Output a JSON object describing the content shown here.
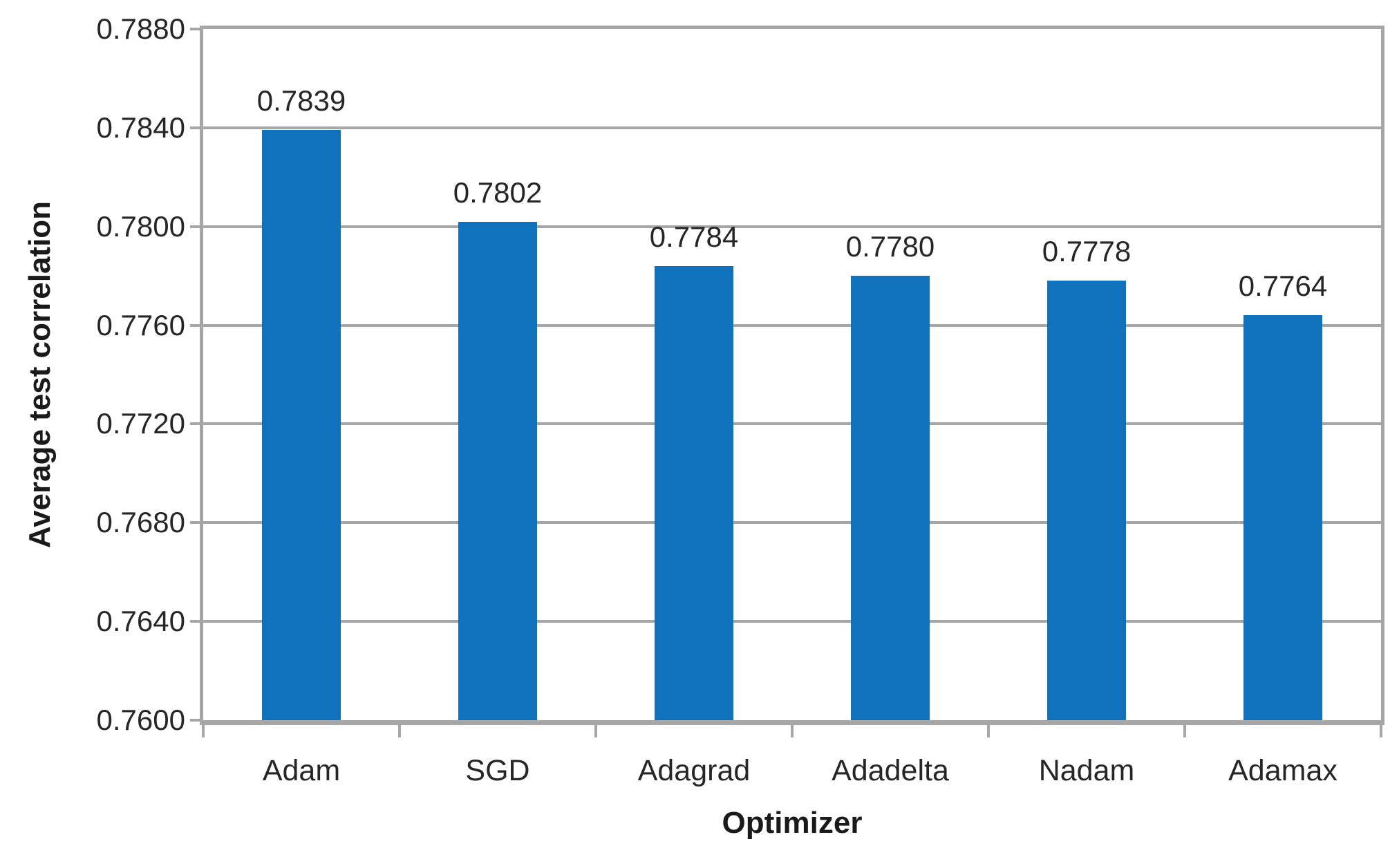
{
  "chart_data": {
    "type": "bar",
    "title": "",
    "categories": [
      "Adam",
      "SGD",
      "Adagrad",
      "Adadelta",
      "Nadam",
      "Adamax"
    ],
    "values": [
      0.7839,
      0.7802,
      0.7784,
      0.778,
      0.7778,
      0.7764
    ],
    "data_labels": [
      "0.7839",
      "0.7802",
      "0.7784",
      "0.7780",
      "0.7778",
      "0.7764"
    ],
    "xlabel": "Optimizer",
    "ylabel": "Average test correlation",
    "ylim": [
      0.76,
      0.788
    ],
    "ytick_step": 0.004,
    "ytick_labels_top_to_bottom": [
      "0.7880",
      "0.7840",
      "0.7800",
      "0.7760",
      "0.7720",
      "0.7680",
      "0.7640",
      "0.7600"
    ],
    "grid": "horizontal-on",
    "legend": "none",
    "bar_color": "#1072BD",
    "grid_color": "#A6A6A6",
    "text_color": "#262626",
    "background_color": "#FFFFFF"
  }
}
